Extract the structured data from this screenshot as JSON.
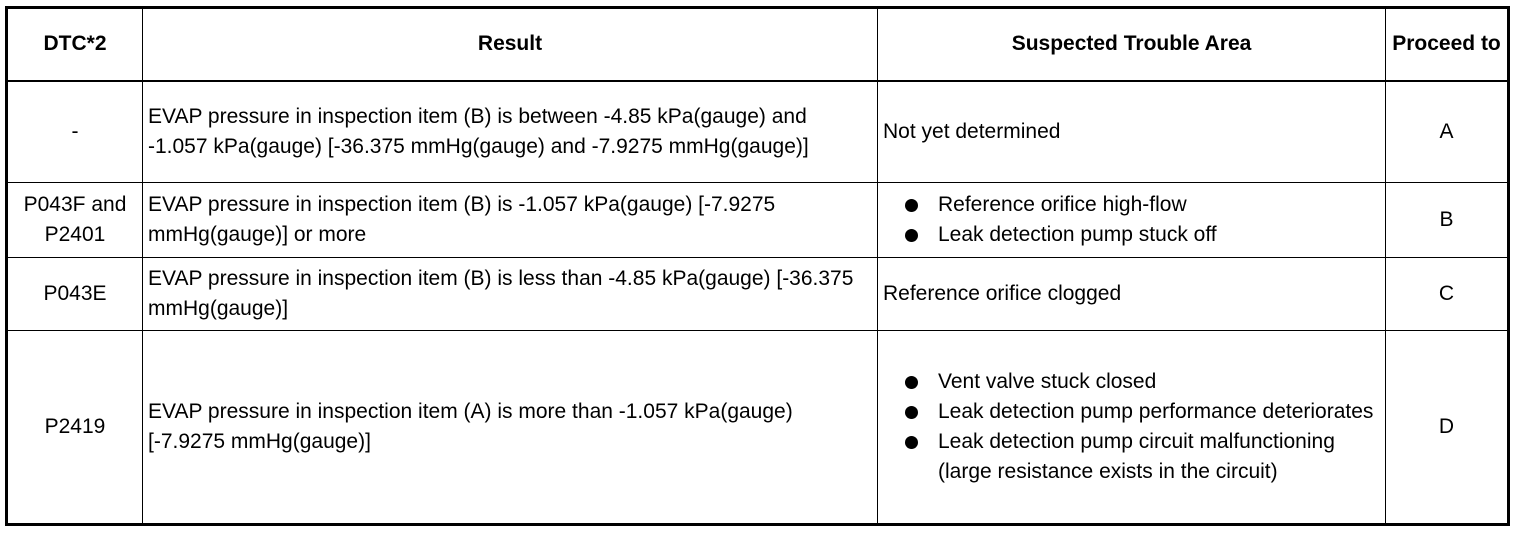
{
  "table": {
    "headers": {
      "dtc": "DTC*2",
      "result": "Result",
      "area": "Suspected Trouble Area",
      "proceed": "Proceed to"
    },
    "rows": [
      {
        "dtc": "-",
        "result": "EVAP pressure in inspection item (B) is between -4.85 kPa(gauge) and -1.057 kPa(gauge) [-36.375 mmHg(gauge) and -7.9275 mmHg(gauge)]",
        "area_text": "Not yet determined",
        "proceed": "A"
      },
      {
        "dtc": "P043F and P2401",
        "result": "EVAP pressure in inspection item (B) is -1.057 kPa(gauge) [-7.9275 mmHg(gauge)] or more",
        "area_items": [
          "Reference orifice high-flow",
          "Leak detection pump stuck off"
        ],
        "proceed": "B"
      },
      {
        "dtc": "P043E",
        "result": "EVAP pressure in inspection item (B) is less than -4.85 kPa(gauge) [-36.375 mmHg(gauge)]",
        "area_text": "Reference orifice clogged",
        "proceed": "C"
      },
      {
        "dtc": "P2419",
        "result": "EVAP pressure in inspection item (A) is more than -1.057 kPa(gauge) [-7.9275 mmHg(gauge)]",
        "area_items": [
          "Vent valve stuck closed",
          "Leak detection pump performance deteriorates",
          "Leak detection pump circuit malfunctioning (large resistance exists in the circuit)"
        ],
        "proceed": "D"
      }
    ]
  }
}
